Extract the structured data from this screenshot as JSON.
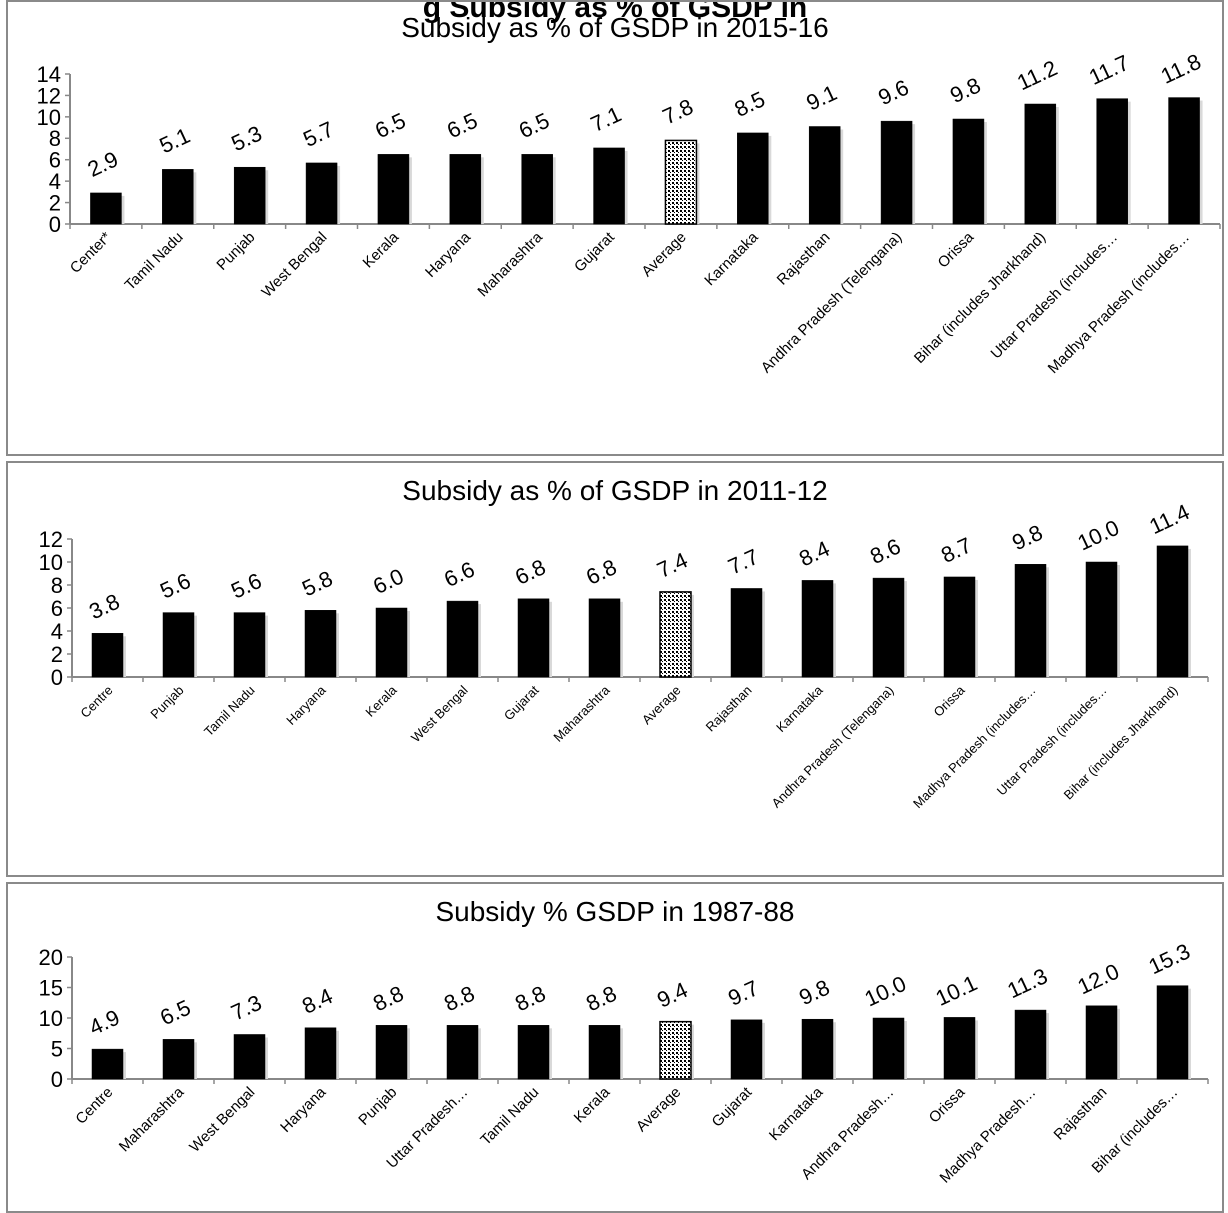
{
  "page_header": "g Subsidy as % of GSDP in",
  "chart_data": [
    {
      "type": "bar",
      "title": "Subsidy as % of GSDP in 2015-16",
      "xlabel": "",
      "ylabel": "",
      "ylim": [
        0,
        14
      ],
      "yticks": [
        "0",
        "2",
        "4",
        "6",
        "8",
        "10",
        "12",
        "14"
      ],
      "categories": [
        "Center*",
        "Tamil Nadu",
        "Punjab",
        "West Bengal",
        "Kerala",
        "Haryana",
        "Maharashtra",
        "Gujarat",
        "Average",
        "Karnataka",
        "Rajasthan",
        "Andhra Pradesh (Telengana)",
        "Orissa",
        "Bihar (includes Jharkhand)",
        "Uttar Pradesh (includes…",
        "Madhya Pradesh (includes…"
      ],
      "values": [
        2.9,
        5.1,
        5.3,
        5.7,
        6.5,
        6.5,
        6.5,
        7.1,
        7.8,
        8.5,
        9.1,
        9.6,
        9.8,
        11.2,
        11.7,
        11.8
      ],
      "value_labels": [
        "2.9",
        "5.1",
        "5.3",
        "5.7",
        "6.5",
        "6.5",
        "6.5",
        "7.1",
        "7.8",
        "8.5",
        "9.1",
        "9.6",
        "9.8",
        "11.2",
        "11.7",
        "11.8"
      ],
      "highlight_category": "Average",
      "bar_color": "#000000",
      "highlight_pattern": "dotted",
      "legend": "none",
      "grid": false
    },
    {
      "type": "bar",
      "title": "Subsidy as % of GSDP in 2011-12",
      "xlabel": "",
      "ylabel": "",
      "ylim": [
        0,
        12
      ],
      "yticks": [
        "0",
        "2",
        "4",
        "6",
        "8",
        "10",
        "12"
      ],
      "categories": [
        "Centre",
        "Punjab",
        "Tamil Nadu",
        "Haryana",
        "Kerala",
        "West Bengal",
        "Gujarat",
        "Maharashtra",
        "Average",
        "Rajasthan",
        "Karnataka",
        "Andhra Pradesh (Telengana)",
        "Orissa",
        "Madhya Pradesh (includes…",
        "Uttar Pradesh (includes…",
        "Bihar (includes Jharkhand)"
      ],
      "values": [
        3.8,
        5.6,
        5.6,
        5.8,
        6.0,
        6.6,
        6.8,
        6.8,
        7.4,
        7.7,
        8.4,
        8.6,
        8.7,
        9.8,
        10.0,
        11.4
      ],
      "value_labels": [
        "3.8",
        "5.6",
        "5.6",
        "5.8",
        "6.0",
        "6.6",
        "6.8",
        "6.8",
        "7.4",
        "7.7",
        "8.4",
        "8.6",
        "8.7",
        "9.8",
        "10.0",
        "11.4"
      ],
      "highlight_category": "Average",
      "bar_color": "#000000",
      "highlight_pattern": "dotted",
      "legend": "none",
      "grid": false
    },
    {
      "type": "bar",
      "title": "Subsidy % GSDP in 1987-88",
      "xlabel": "",
      "ylabel": "",
      "ylim": [
        0,
        20
      ],
      "yticks": [
        "0",
        "5",
        "10",
        "15",
        "20"
      ],
      "categories": [
        "Centre",
        "Maharashtra",
        "West Bengal",
        "Haryana",
        "Punjab",
        "Uttar Pradesh…",
        "Tamil Nadu",
        "Kerala",
        "Average",
        "Gujarat",
        "Karnataka",
        "Andhra Pradesh…",
        "Orissa",
        "Madhya Pradesh…",
        "Rajasthan",
        "Bihar (includes…"
      ],
      "values": [
        4.9,
        6.5,
        7.3,
        8.4,
        8.8,
        8.8,
        8.8,
        8.8,
        9.4,
        9.7,
        9.8,
        10.0,
        10.1,
        11.3,
        12.0,
        15.3
      ],
      "value_labels": [
        "4.9",
        "6.5",
        "7.3",
        "8.4",
        "8.8",
        "8.8",
        "8.8",
        "8.8",
        "9.4",
        "9.7",
        "9.8",
        "10.0",
        "10.1",
        "11.3",
        "12.0",
        "15.3"
      ],
      "highlight_category": "Average",
      "bar_color": "#000000",
      "highlight_pattern": "dotted",
      "legend": "none",
      "grid": false
    }
  ]
}
